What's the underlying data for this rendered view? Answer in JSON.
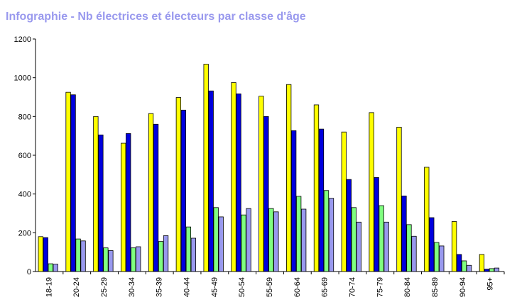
{
  "colors": {
    "title": "#9999ee",
    "axis": "#000000",
    "series": [
      "#ffff00",
      "#0000dd",
      "#80ff80",
      "#9999ee"
    ]
  },
  "chart_data": {
    "type": "bar",
    "title": "Infographie - Nb électrices et électeurs par classe d'âge",
    "xlabel": "",
    "ylabel": "",
    "ylim": [
      0,
      1200
    ],
    "yticks": [
      "0",
      "200",
      "400",
      "600",
      "800",
      "1000",
      "1200"
    ],
    "grid": false,
    "legend": "none",
    "categories": [
      "18-19",
      "20-24",
      "25-29",
      "30-34",
      "35-39",
      "40-44",
      "45-49",
      "50-54",
      "55-59",
      "60-64",
      "65-69",
      "70-74",
      "75-79",
      "80-84",
      "85-89",
      "90-94",
      "95+"
    ],
    "series": [
      {
        "values": [
          180,
          925,
          800,
          662,
          815,
          898,
          1070,
          975,
          905,
          965,
          860,
          720,
          820,
          745,
          538,
          258,
          88
        ]
      },
      {
        "values": [
          175,
          912,
          705,
          712,
          760,
          833,
          932,
          917,
          800,
          727,
          735,
          475,
          485,
          390,
          278,
          88,
          12
        ]
      },
      {
        "values": [
          40,
          168,
          122,
          122,
          155,
          230,
          330,
          292,
          325,
          388,
          418,
          330,
          340,
          242,
          150,
          55,
          15
        ]
      },
      {
        "values": [
          38,
          158,
          108,
          128,
          185,
          172,
          282,
          325,
          308,
          322,
          378,
          255,
          255,
          182,
          132,
          32,
          18
        ]
      }
    ]
  }
}
